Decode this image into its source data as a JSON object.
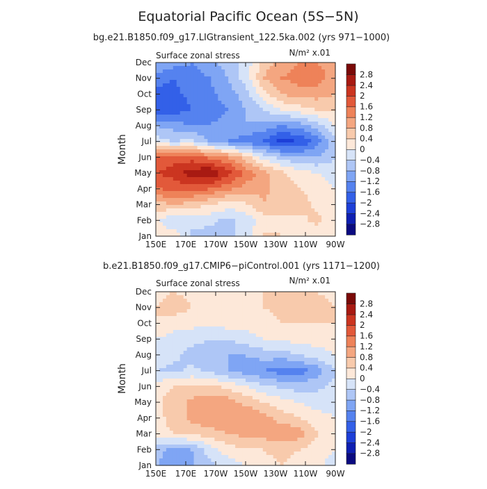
{
  "figure": {
    "title": "Equatorial Pacific Ocean (5S−5N)"
  },
  "colorbar": {
    "colors": [
      "#0a0a80",
      "#0e1fb2",
      "#1d3fd8",
      "#3360e8",
      "#5582ef",
      "#7fa5f4",
      "#aec6f6",
      "#d6e3f8",
      "#fde8d9",
      "#f8caac",
      "#f4a680",
      "#ee8259",
      "#e2593a",
      "#cb3520",
      "#a81a12",
      "#7a0a08"
    ],
    "levels": [
      "−2.8",
      "−2.4",
      "−2",
      "−1.6",
      "−1.2",
      "−0.8",
      "−0.4",
      "0",
      "0.4",
      "0.8",
      "1.2",
      "1.6",
      "2",
      "2.4",
      "2.8"
    ]
  },
  "chart_data": [
    {
      "type": "heatmap",
      "title": "bg.e21.B1850.f09_g17.LIGtransient_122.5ka.002 (yrs 971−1000)",
      "left_label": "Surface zonal stress",
      "units_label": "N/m² x.01",
      "ylabel": "Month",
      "xlabel": "",
      "x_ticks": [
        "150E",
        "170E",
        "170W",
        "150W",
        "130W",
        "110W",
        "90W"
      ],
      "y_ticks": [
        "Jan",
        "Feb",
        "Mar",
        "Apr",
        "May",
        "Jun",
        "Jul",
        "Aug",
        "Sep",
        "Oct",
        "Nov",
        "Dec"
      ],
      "values": [
        [
          0.2,
          0.3,
          -0.5,
          -0.6,
          -0.5,
          -0.2,
          0.5,
          0.4,
          0.3,
          0.2,
          0.0
        ],
        [
          0.1,
          -0.4,
          -0.2,
          -0.3,
          -0.5,
          -0.3,
          0.2,
          0.3,
          0.3,
          0.5,
          0.2
        ],
        [
          0.6,
          0.8,
          0.6,
          0.4,
          0.2,
          0.3,
          0.8,
          0.6,
          0.6,
          0.3,
          0.1
        ],
        [
          1.6,
          1.7,
          1.8,
          1.6,
          1.3,
          1.0,
          0.9,
          0.6,
          0.4,
          0.2,
          0.0
        ],
        [
          2.0,
          2.2,
          2.6,
          2.8,
          2.2,
          1.5,
          1.0,
          0.5,
          0.2,
          0.0,
          -0.2
        ],
        [
          1.6,
          1.8,
          1.8,
          1.5,
          1.2,
          0.6,
          -0.2,
          -0.6,
          -0.8,
          -0.8,
          -0.4
        ],
        [
          -0.2,
          -0.4,
          -0.3,
          -0.8,
          -1.2,
          -1.4,
          -1.6,
          -2.2,
          -2.0,
          -1.4,
          -0.6
        ],
        [
          -0.8,
          -1.0,
          -1.2,
          -1.2,
          -1.0,
          -0.8,
          -1.0,
          -1.2,
          -1.0,
          -0.6,
          0.0
        ],
        [
          -2.0,
          -1.8,
          -1.6,
          -1.4,
          -1.2,
          -0.8,
          -0.4,
          0.0,
          0.2,
          0.4,
          0.4
        ],
        [
          -1.8,
          -1.7,
          -1.5,
          -1.3,
          -1.0,
          -0.6,
          0.2,
          0.8,
          1.0,
          1.0,
          0.8
        ],
        [
          -1.4,
          -1.6,
          -1.4,
          -1.2,
          -0.8,
          -0.2,
          0.8,
          1.2,
          1.4,
          1.4,
          1.0
        ],
        [
          -0.8,
          -1.0,
          -1.2,
          -1.0,
          -0.6,
          -0.3,
          0.6,
          1.0,
          1.2,
          1.2,
          1.0
        ]
      ]
    },
    {
      "type": "heatmap",
      "title": "b.e21.B1850.f09_g17.CMIP6−piControl.001 (yrs 1171−1200)",
      "left_label": "Surface zonal stress",
      "units_label": "N/m² x.01",
      "ylabel": "Month",
      "xlabel": "",
      "x_ticks": [
        "150E",
        "170E",
        "170W",
        "150W",
        "130W",
        "110W",
        "90W"
      ],
      "y_ticks": [
        "Jan",
        "Feb",
        "Mar",
        "Apr",
        "May",
        "Jun",
        "Jul",
        "Aug",
        "Sep",
        "Oct",
        "Nov",
        "Dec"
      ],
      "values": [
        [
          -0.8,
          -1.0,
          -0.9,
          -0.5,
          -0.2,
          0.0,
          0.3,
          0.4,
          0.3,
          0.1,
          -0.2
        ],
        [
          -0.6,
          -1.0,
          -0.8,
          -0.2,
          0.2,
          0.4,
          0.4,
          0.5,
          0.4,
          0.2,
          0.0
        ],
        [
          0.2,
          0.4,
          0.5,
          0.6,
          0.8,
          0.9,
          1.0,
          1.2,
          1.0,
          0.4,
          0.0
        ],
        [
          0.2,
          0.6,
          0.9,
          1.1,
          1.2,
          1.2,
          1.0,
          0.6,
          0.4,
          0.2,
          0.0
        ],
        [
          0.3,
          0.6,
          0.9,
          1.1,
          1.0,
          0.7,
          0.4,
          0.2,
          0.0,
          -0.2,
          -0.2
        ],
        [
          0.2,
          0.4,
          0.5,
          0.5,
          0.3,
          0.0,
          -0.3,
          -0.5,
          -0.6,
          -0.5,
          -0.3
        ],
        [
          -0.4,
          -0.5,
          -0.3,
          -0.5,
          -0.8,
          -1.0,
          -1.2,
          -1.4,
          -1.4,
          -1.0,
          -0.4
        ],
        [
          -0.2,
          -0.3,
          -0.6,
          -0.8,
          -0.8,
          -0.8,
          -0.6,
          -0.6,
          -0.4,
          -0.2,
          0.0
        ],
        [
          0.0,
          -0.2,
          -0.2,
          -0.4,
          -0.4,
          -0.2,
          0.0,
          0.0,
          0.2,
          0.2,
          0.2
        ],
        [
          0.4,
          0.2,
          0.1,
          0.1,
          0.2,
          0.2,
          0.2,
          0.4,
          0.4,
          0.4,
          0.4
        ],
        [
          0.4,
          0.6,
          0.4,
          0.3,
          0.4,
          0.4,
          0.4,
          0.5,
          0.6,
          0.5,
          0.4
        ],
        [
          0.3,
          0.4,
          0.3,
          0.2,
          0.2,
          0.3,
          0.4,
          0.5,
          0.6,
          0.4,
          0.3
        ]
      ]
    }
  ]
}
